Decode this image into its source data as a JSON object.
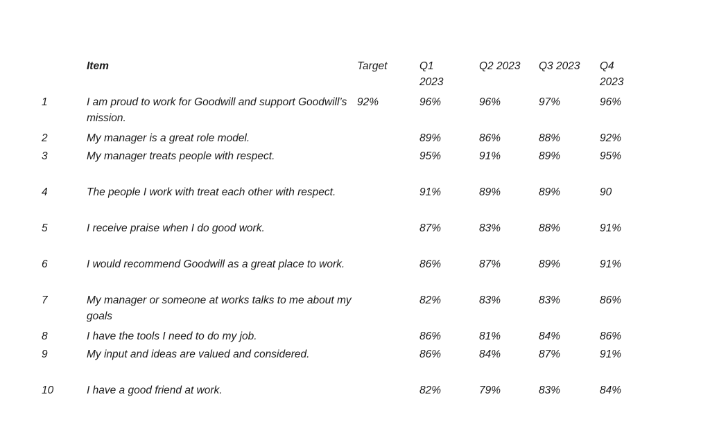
{
  "table": {
    "headers": {
      "number": "",
      "item": "Item",
      "target": "Target",
      "q1": "Q1 2023",
      "q2": "Q2 2023",
      "q3": "Q3 2023",
      "q4": "Q4 2023"
    },
    "rows": [
      {
        "num": "1",
        "item": "I am proud to work for Goodwill and support Goodwill’s mission.",
        "target": "92%",
        "q1": "96%",
        "q2": "96%",
        "q3": "97%",
        "q4": "96%"
      },
      {
        "num": "2",
        "item": "My manager is a great role model.",
        "target": "",
        "q1": "89%",
        "q2": "86%",
        "q3": "88%",
        "q4": "92%"
      },
      {
        "num": "3",
        "item": "My manager treats people with respect.",
        "target": "",
        "q1": "95%",
        "q2": "91%",
        "q3": "89%",
        "q4": "95%"
      },
      {
        "num": "4",
        "item": "The people I work with treat each other with respect.",
        "target": "",
        "q1": "91%",
        "q2": "89%",
        "q3": "89%",
        "q4": "90"
      },
      {
        "num": "5",
        "item": "I receive praise when I do good work.",
        "target": "",
        "q1": "87%",
        "q2": "83%",
        "q3": "88%",
        "q4": "91%"
      },
      {
        "num": "6",
        "item": "I would recommend Goodwill as a great place to work.",
        "target": "",
        "q1": "86%",
        "q2": "87%",
        "q3": "89%",
        "q4": "91%"
      },
      {
        "num": "7",
        "item": "My manager or someone at works talks to me about my goals",
        "target": "",
        "q1": "82%",
        "q2": "83%",
        "q3": "83%",
        "q4": "86%"
      },
      {
        "num": "8",
        "item": "I have the tools I need to do my job.",
        "target": "",
        "q1": "86%",
        "q2": "81%",
        "q3": "84%",
        "q4": "86%"
      },
      {
        "num": "9",
        "item": "My input and ideas are valued and considered.",
        "target": "",
        "q1": "86%",
        "q2": "84%",
        "q3": "87%",
        "q4": "91%"
      },
      {
        "num": "10",
        "item": "I have a good friend at work.",
        "target": "",
        "q1": "82%",
        "q2": "79%",
        "q3": "83%",
        "q4": "84%"
      }
    ]
  }
}
